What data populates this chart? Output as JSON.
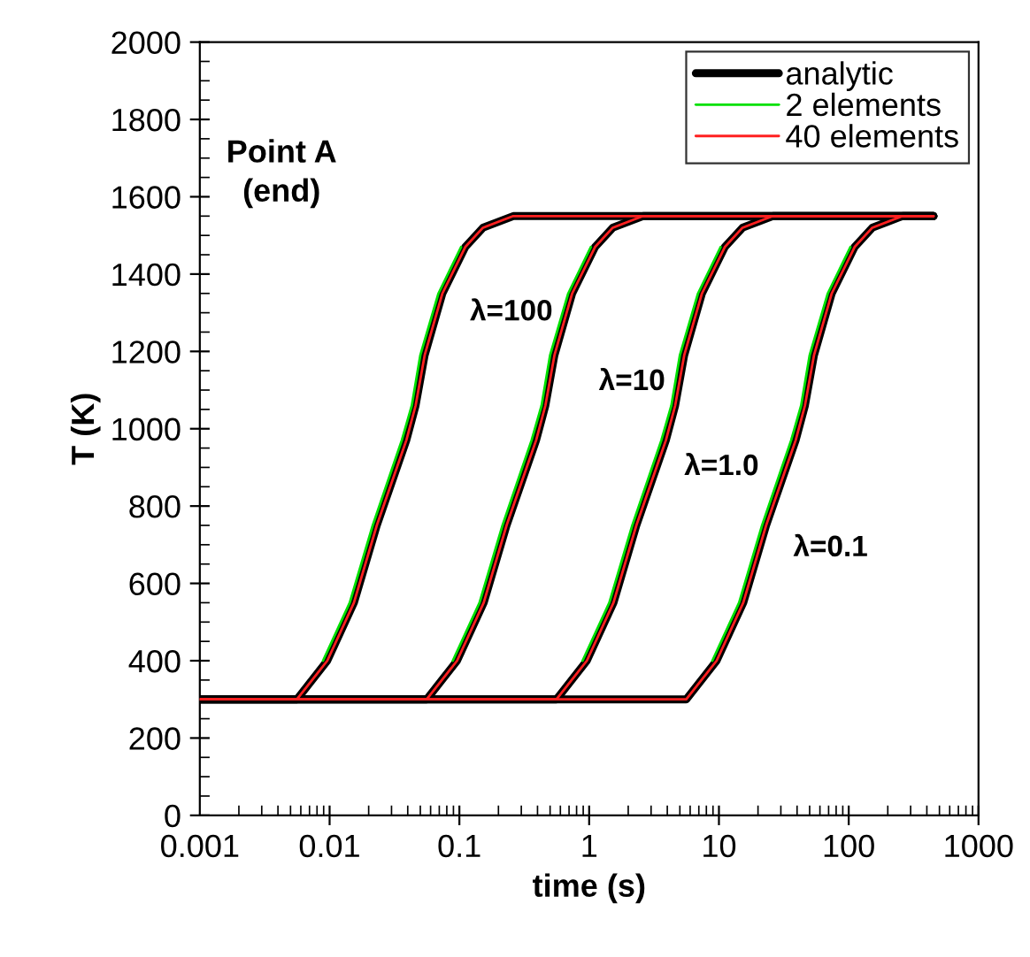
{
  "chart_data": {
    "type": "line",
    "xlabel": "time (s)",
    "ylabel": "T (K)",
    "log": "x",
    "xlim": [
      0.001,
      1000
    ],
    "xticks": [
      0.001,
      0.01,
      0.1,
      1,
      10,
      100,
      1000
    ],
    "ylim": [
      0,
      2000
    ],
    "yticks": [
      0,
      200,
      400,
      600,
      800,
      1000,
      1200,
      1400,
      1600,
      1800,
      2000
    ],
    "grid": false,
    "legend": "top right",
    "marker": "none",
    "line_style": "solid",
    "series": [
      {
        "name": "analytic",
        "color": "#000000",
        "x": [
          0.001,
          0.0056,
          0.0096,
          0.0154,
          0.0231,
          0.039,
          0.046,
          0.054,
          0.074,
          0.111,
          0.152,
          0.26,
          450
        ],
        "values": [
          300,
          300,
          400,
          550,
          750,
          970,
          1060,
          1190,
          1350,
          1470,
          1520,
          1550,
          1550
        ]
      },
      {
        "color": "#000000",
        "x": [
          0.001,
          0.056,
          0.096,
          0.154,
          0.231,
          0.39,
          0.46,
          0.54,
          0.74,
          1.11,
          1.52,
          2.6,
          450
        ],
        "values": [
          300,
          300,
          400,
          550,
          750,
          970,
          1060,
          1190,
          1350,
          1470,
          1520,
          1550,
          1550
        ]
      },
      {
        "color": "#000000",
        "x": [
          0.001,
          0.56,
          0.96,
          1.54,
          2.31,
          3.9,
          4.6,
          5.4,
          7.4,
          11.1,
          15.2,
          26,
          450
        ],
        "values": [
          300,
          300,
          400,
          550,
          750,
          970,
          1060,
          1190,
          1350,
          1470,
          1520,
          1550,
          1550
        ]
      },
      {
        "color": "#000000",
        "x": [
          0.001,
          5.6,
          9.6,
          15.4,
          23.1,
          39,
          46,
          54,
          74,
          111,
          152,
          260,
          450
        ],
        "values": [
          300,
          300,
          400,
          550,
          750,
          970,
          1060,
          1190,
          1350,
          1470,
          1520,
          1550,
          1550
        ]
      },
      {
        "name": "2 elements",
        "color": "#00e000",
        "x": [
          0.0089,
          0.0143,
          0.0215,
          0.036,
          0.043,
          0.05,
          0.069,
          0.103
        ],
        "values": [
          400,
          550,
          750,
          970,
          1060,
          1190,
          1350,
          1470
        ]
      },
      {
        "color": "#00e000",
        "x": [
          0.089,
          0.143,
          0.215,
          0.36,
          0.43,
          0.5,
          0.69,
          1.03
        ],
        "values": [
          400,
          550,
          750,
          970,
          1060,
          1190,
          1350,
          1470
        ]
      },
      {
        "color": "#00e000",
        "x": [
          0.89,
          1.43,
          2.15,
          3.6,
          4.3,
          5.0,
          6.9,
          10.3
        ],
        "values": [
          400,
          550,
          750,
          970,
          1060,
          1190,
          1350,
          1470
        ]
      },
      {
        "color": "#00e000",
        "x": [
          8.9,
          14.3,
          21.5,
          36,
          43,
          50,
          69,
          103
        ],
        "values": [
          400,
          550,
          750,
          970,
          1060,
          1190,
          1350,
          1470
        ]
      },
      {
        "name": "40 elements",
        "color": "#ff2020",
        "x": [
          0.001,
          0.0056,
          0.0096,
          0.0154,
          0.0231,
          0.039,
          0.046,
          0.054,
          0.074,
          0.111,
          0.152,
          0.26,
          450
        ],
        "values": [
          300,
          300,
          400,
          550,
          750,
          970,
          1060,
          1190,
          1350,
          1470,
          1520,
          1550,
          1550
        ]
      },
      {
        "color": "#ff2020",
        "x": [
          0.001,
          0.056,
          0.096,
          0.154,
          0.231,
          0.39,
          0.46,
          0.54,
          0.74,
          1.11,
          1.52,
          2.6,
          450
        ],
        "values": [
          300,
          300,
          400,
          550,
          750,
          970,
          1060,
          1190,
          1350,
          1470,
          1520,
          1550,
          1550
        ]
      },
      {
        "color": "#ff2020",
        "x": [
          0.001,
          0.56,
          0.96,
          1.54,
          2.31,
          3.9,
          4.6,
          5.4,
          7.4,
          11.1,
          15.2,
          26,
          450
        ],
        "values": [
          300,
          300,
          400,
          550,
          750,
          970,
          1060,
          1190,
          1350,
          1470,
          1520,
          1550,
          1550
        ]
      },
      {
        "color": "#ff2020",
        "x": [
          0.001,
          5.6,
          9.6,
          15.4,
          23.1,
          39,
          46,
          54,
          74,
          111,
          152,
          260,
          450
        ],
        "values": [
          300,
          300,
          400,
          550,
          750,
          970,
          1060,
          1190,
          1350,
          1470,
          1520,
          1550,
          1550
        ]
      }
    ],
    "annotations": [
      "Point A\n(end)",
      "λ=100",
      "λ=10",
      "λ=1.0",
      "λ=0.1"
    ]
  }
}
